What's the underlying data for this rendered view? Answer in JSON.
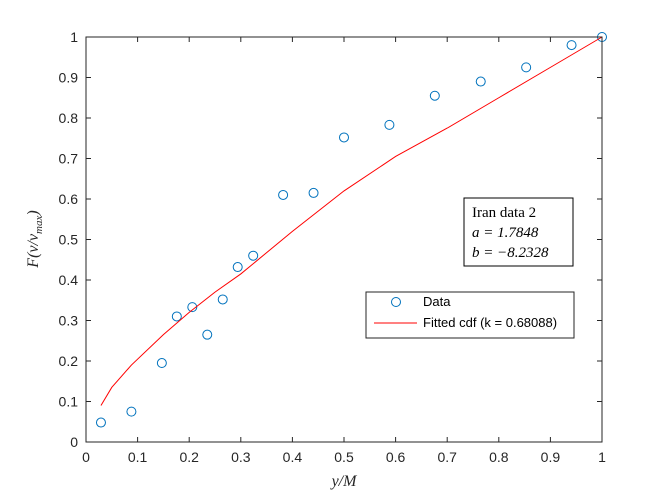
{
  "chart_data": {
    "type": "scatter",
    "xlabel": "y/M",
    "ylabel": "F(ν/ν_max)",
    "xlim": [
      0,
      1
    ],
    "ylim": [
      0,
      1
    ],
    "xticks": [
      "0",
      "0.1",
      "0.2",
      "0.3",
      "0.4",
      "0.5",
      "0.6",
      "0.7",
      "0.8",
      "0.9",
      "1"
    ],
    "yticks": [
      "0",
      "0.1",
      "0.2",
      "0.3",
      "0.4",
      "0.5",
      "0.6",
      "0.7",
      "0.8",
      "0.9",
      "1"
    ],
    "grid": false,
    "series": [
      {
        "name": "Data",
        "kind": "markers",
        "color": "#0072BD",
        "marker": "circle",
        "x": [
          0.029,
          0.088,
          0.147,
          0.176,
          0.206,
          0.235,
          0.265,
          0.294,
          0.324,
          0.382,
          0.441,
          0.5,
          0.588,
          0.676,
          0.765,
          0.853,
          0.941,
          1.0
        ],
        "y": [
          0.048,
          0.075,
          0.195,
          0.31,
          0.333,
          0.265,
          0.352,
          0.432,
          0.46,
          0.61,
          0.615,
          0.752,
          0.783,
          0.855,
          0.89,
          0.925,
          0.98,
          1.0
        ]
      },
      {
        "name": "Fitted cdf (k = 0.68088)",
        "kind": "line",
        "color": "#FF0000",
        "x": [
          0.029,
          0.05,
          0.088,
          0.15,
          0.2,
          0.25,
          0.3,
          0.4,
          0.5,
          0.6,
          0.7,
          0.8,
          0.9,
          1.0
        ],
        "y": [
          0.09,
          0.135,
          0.19,
          0.265,
          0.32,
          0.37,
          0.415,
          0.52,
          0.62,
          0.705,
          0.775,
          0.85,
          0.925,
          1.0
        ]
      }
    ],
    "legend_position": "center-right",
    "annotation": {
      "lines": [
        "Iran data 2",
        "a = 1.7848",
        "b = −8.2328"
      ]
    }
  }
}
